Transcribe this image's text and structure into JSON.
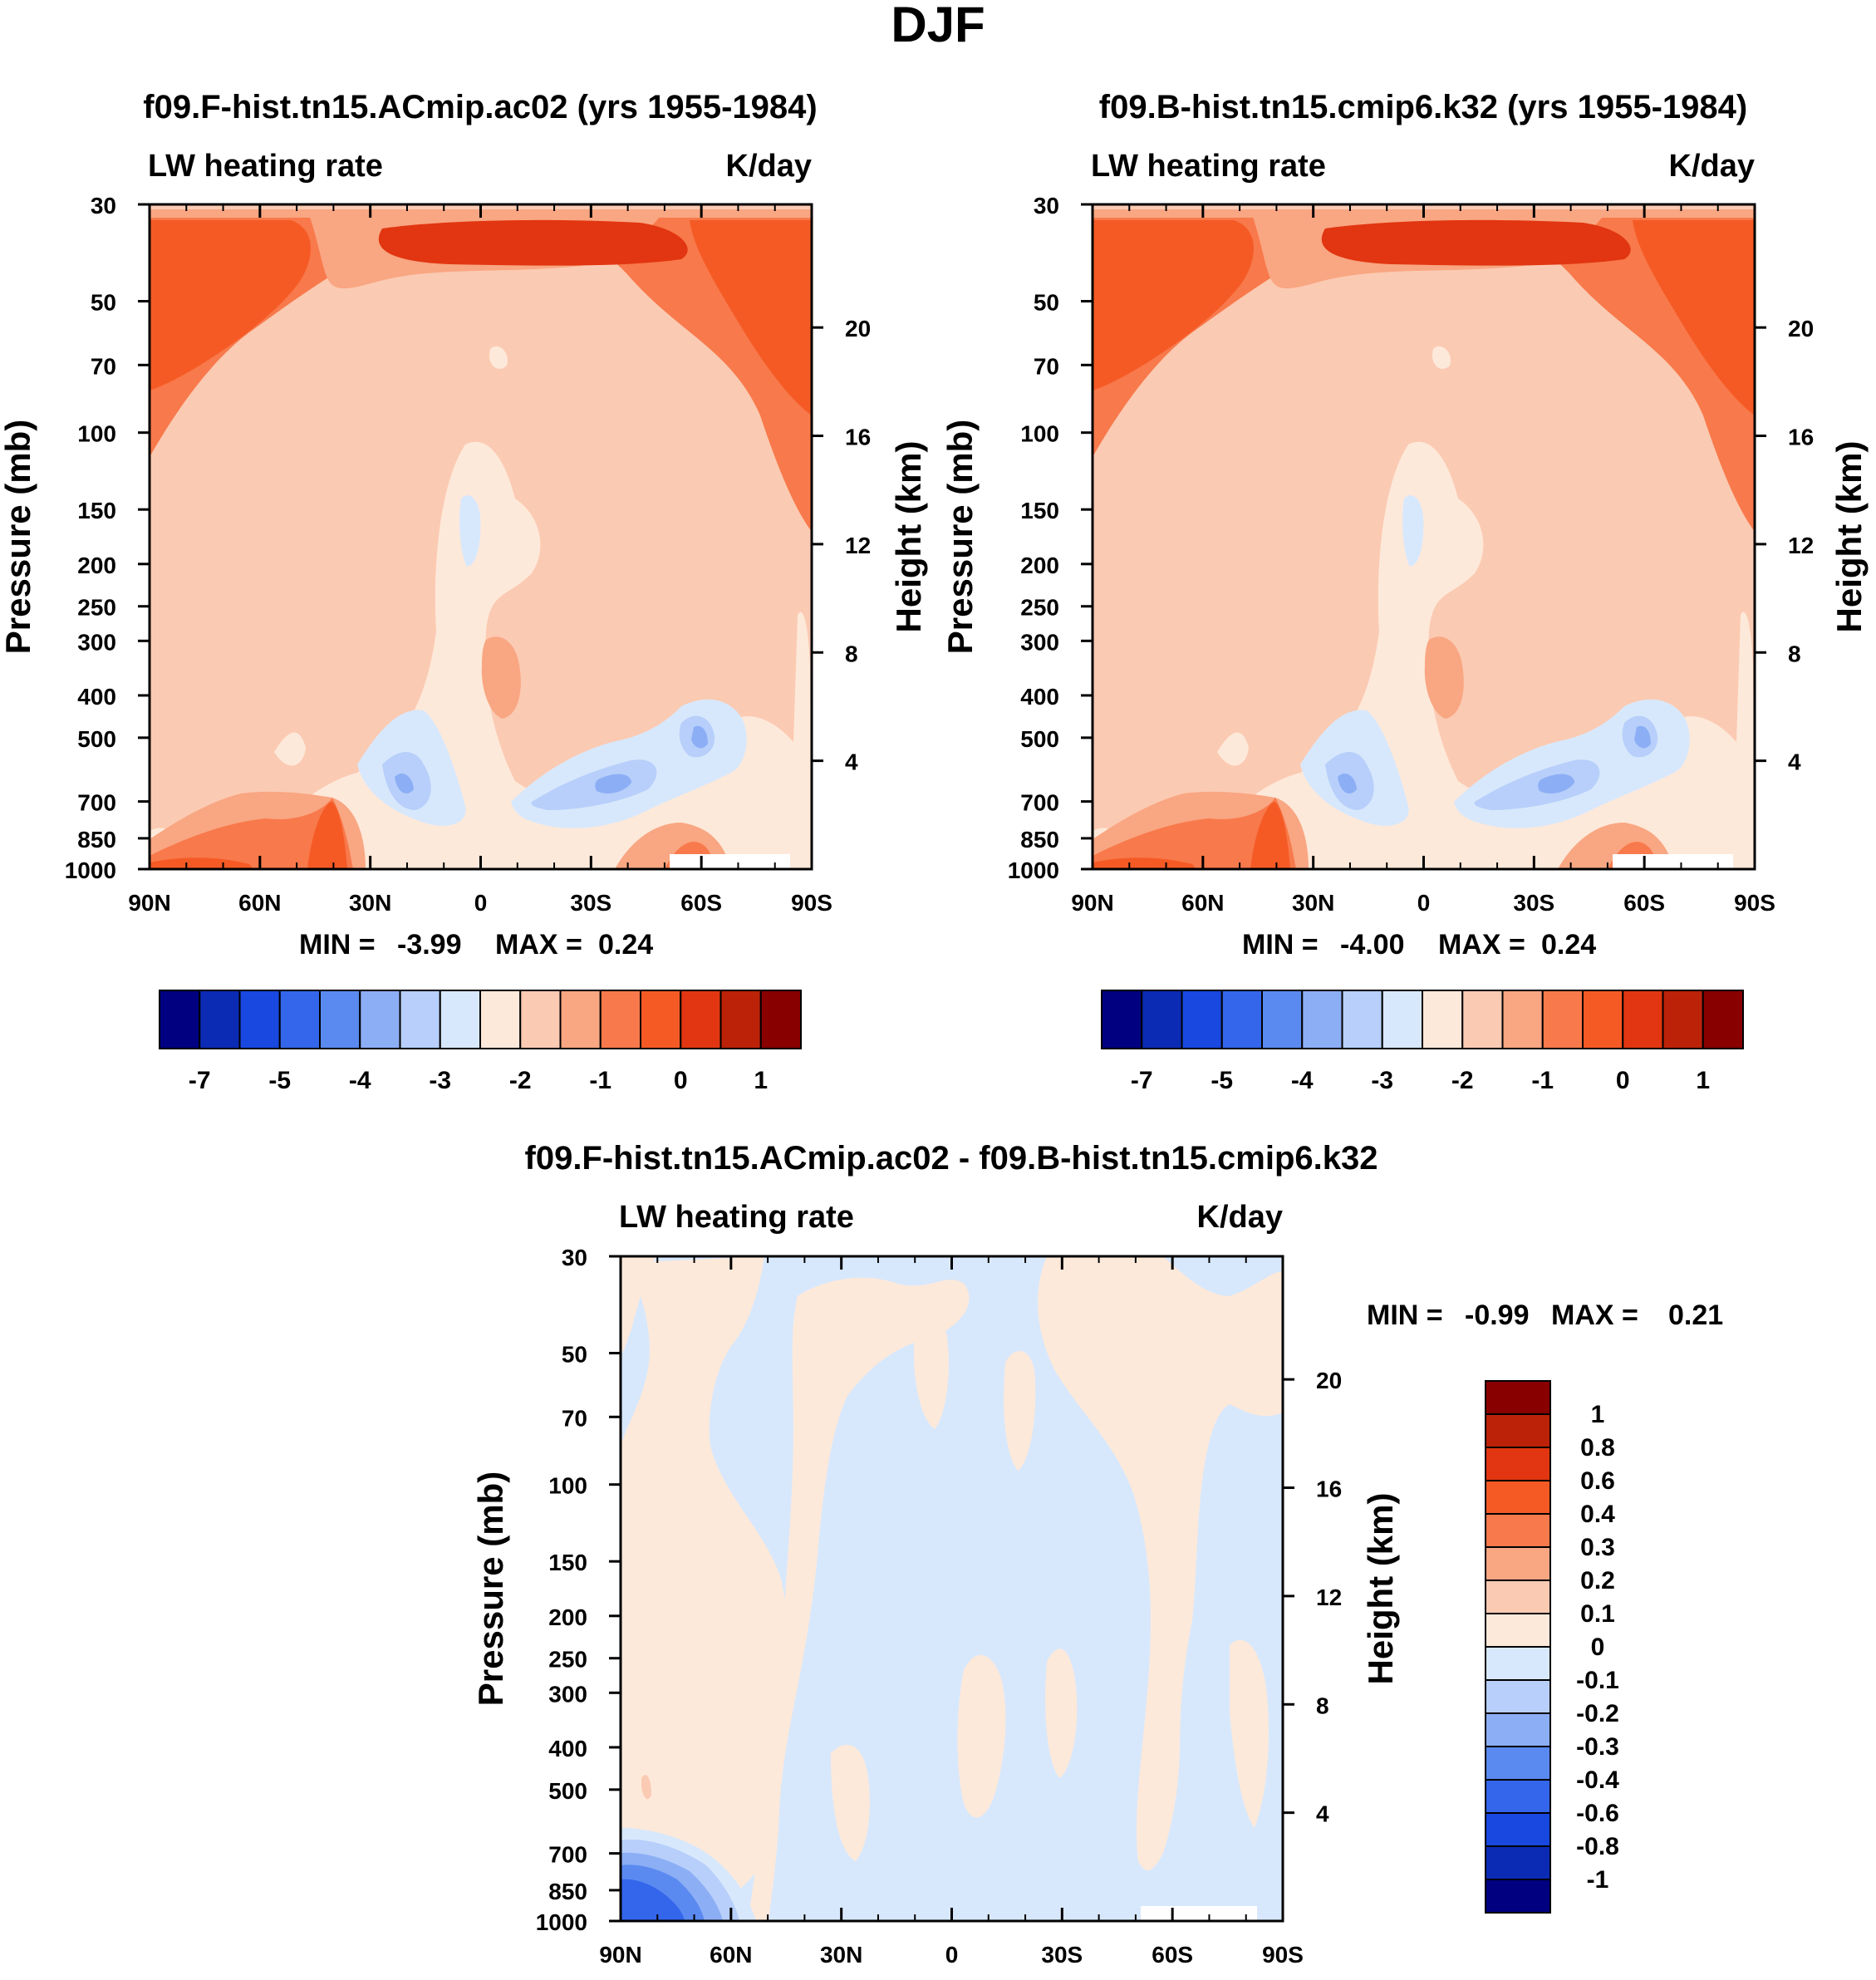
{
  "figure_title": "DJF",
  "colors": {
    "scale": [
      "#000080",
      "#0b2bb5",
      "#1848e0",
      "#3466ec",
      "#5a8af0",
      "#8caef5",
      "#b7cffa",
      "#d8e8fc",
      "#fde9da",
      "#fbcab2",
      "#f9a682",
      "#f8794b",
      "#f55a25",
      "#e13611",
      "#bb2208",
      "#890000"
    ],
    "shading": {
      "ltblue": "#d8e8fc",
      "midblue": "#b7cffa",
      "blue": "#8caef5",
      "dblue": "#5a8af0",
      "ddblue": "#3466ec",
      "cream": "#fde9da",
      "peach": "#fbcab2",
      "salmon": "#f9a682",
      "orange": "#f8794b",
      "redorange": "#f55a25",
      "red": "#e13611"
    }
  },
  "chart_data": [
    {
      "type": "contour",
      "title": "f09.F-hist.tn15.ACmip.ac02 (yrs 1955-1984)",
      "left_string": "LW heating rate",
      "right_string": "K/day",
      "ylabel": "Pressure (mb)",
      "ylabel_right": "Height (km)",
      "x_ticklabels": [
        "90N",
        "60N",
        "30N",
        "0",
        "30S",
        "60S",
        "90S"
      ],
      "x_range": [
        90,
        -90
      ],
      "y_ticks": [
        30,
        50,
        70,
        100,
        150,
        200,
        250,
        300,
        400,
        500,
        700,
        850,
        1000
      ],
      "y_ticklabels": [
        "30",
        "50",
        "70",
        "100",
        "150",
        "200",
        "250",
        "300",
        "400",
        "500",
        "700",
        "850",
        "1000"
      ],
      "y_range": [
        30,
        1000
      ],
      "height_ticks": [
        "20",
        "16",
        "12",
        "8",
        "4"
      ],
      "height_km": [
        20,
        16,
        12,
        8,
        4
      ],
      "stats": {
        "min_label": "MIN =",
        "min": "-3.99",
        "max_label": "MAX =",
        "max": "0.24"
      },
      "colorbar": {
        "orientation": "horizontal",
        "levels": [
          -7,
          -6,
          -5,
          -4.5,
          -4,
          -3.5,
          -3,
          -2.5,
          -2,
          -1.5,
          -1,
          -0.5,
          0,
          0.5,
          1
        ],
        "labels": [
          "-7",
          "-5",
          "-4",
          "-3",
          "-2",
          "-1",
          "0",
          "1"
        ]
      }
    },
    {
      "type": "contour",
      "title": "f09.B-hist.tn15.cmip6.k32 (yrs 1955-1984)",
      "left_string": "LW heating rate",
      "right_string": "K/day",
      "ylabel": "Pressure (mb)",
      "ylabel_right": "Height (km)",
      "x_ticklabels": [
        "90N",
        "60N",
        "30N",
        "0",
        "30S",
        "60S",
        "90S"
      ],
      "x_range": [
        90,
        -90
      ],
      "y_ticks": [
        30,
        50,
        70,
        100,
        150,
        200,
        250,
        300,
        400,
        500,
        700,
        850,
        1000
      ],
      "y_ticklabels": [
        "30",
        "50",
        "70",
        "100",
        "150",
        "200",
        "250",
        "300",
        "400",
        "500",
        "700",
        "850",
        "1000"
      ],
      "y_range": [
        30,
        1000
      ],
      "height_ticks": [
        "20",
        "16",
        "12",
        "8",
        "4"
      ],
      "height_km": [
        20,
        16,
        12,
        8,
        4
      ],
      "stats": {
        "min_label": "MIN =",
        "min": "-4.00",
        "max_label": "MAX =",
        "max": "0.24"
      },
      "colorbar": {
        "orientation": "horizontal",
        "levels": [
          -7,
          -6,
          -5,
          -4.5,
          -4,
          -3.5,
          -3,
          -2.5,
          -2,
          -1.5,
          -1,
          -0.5,
          0,
          0.5,
          1
        ],
        "labels": [
          "-7",
          "-5",
          "-4",
          "-3",
          "-2",
          "-1",
          "0",
          "1"
        ]
      }
    },
    {
      "type": "contour",
      "title": "f09.F-hist.tn15.ACmip.ac02 - f09.B-hist.tn15.cmip6.k32",
      "left_string": "LW heating rate",
      "right_string": "K/day",
      "ylabel": "Pressure (mb)",
      "ylabel_right": "Height (km)",
      "x_ticklabels": [
        "90N",
        "60N",
        "30N",
        "0",
        "30S",
        "60S",
        "90S"
      ],
      "x_range": [
        90,
        -90
      ],
      "y_ticks": [
        30,
        50,
        70,
        100,
        150,
        200,
        250,
        300,
        400,
        500,
        700,
        850,
        1000
      ],
      "y_ticklabels": [
        "30",
        "50",
        "70",
        "100",
        "150",
        "200",
        "250",
        "300",
        "400",
        "500",
        "700",
        "850",
        "1000"
      ],
      "y_range": [
        30,
        1000
      ],
      "height_ticks": [
        "20",
        "16",
        "12",
        "8",
        "4"
      ],
      "height_km": [
        20,
        16,
        12,
        8,
        4
      ],
      "stats": {
        "min_label": "MIN =",
        "min": "-0.99",
        "max_label": "MAX =",
        "max": "0.21"
      },
      "colorbar": {
        "orientation": "vertical",
        "labels": [
          "1",
          "0.8",
          "0.6",
          "0.4",
          "0.3",
          "0.2",
          "0.1",
          "0",
          "-0.1",
          "-0.2",
          "-0.3",
          "-0.4",
          "-0.6",
          "-0.8",
          "-1"
        ]
      }
    }
  ]
}
